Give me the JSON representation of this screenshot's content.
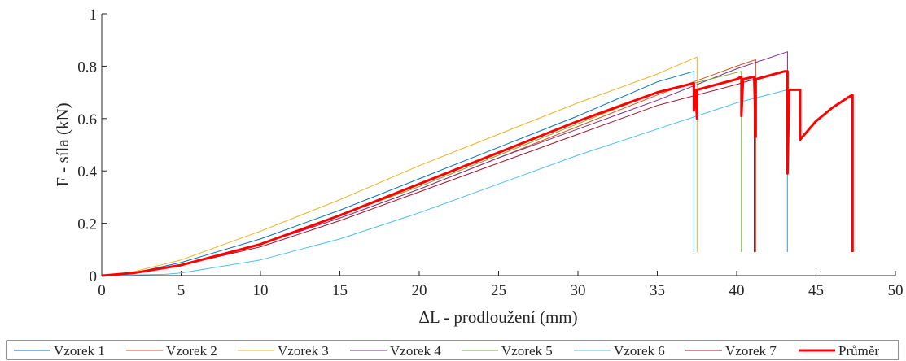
{
  "chart_data": {
    "type": "line",
    "title": "",
    "xlabel": "ΔL - prodloužení (mm)",
    "ylabel": "F - síla (kN)",
    "xlim": [
      0,
      50
    ],
    "ylim": [
      0,
      1
    ],
    "xticks": [
      0,
      5,
      10,
      15,
      20,
      25,
      30,
      35,
      40,
      45,
      50
    ],
    "yticks": [
      0,
      0.2,
      0.4,
      0.6,
      0.8,
      1
    ],
    "xtick_labels": [
      "0",
      "5",
      "10",
      "15",
      "20",
      "25",
      "30",
      "35",
      "40",
      "45",
      "50"
    ],
    "ytick_labels": [
      "0",
      "0.2",
      "0.4",
      "0.6",
      "0.8",
      "1"
    ],
    "grid": false,
    "legend_position": "bottom",
    "series": [
      {
        "name": "Vzorek 1",
        "color": "#0072BD",
        "width": 1,
        "points": [
          [
            0,
            0
          ],
          [
            2,
            0.01
          ],
          [
            5,
            0.05
          ],
          [
            10,
            0.14
          ],
          [
            15,
            0.25
          ],
          [
            20,
            0.37
          ],
          [
            25,
            0.49
          ],
          [
            30,
            0.61
          ],
          [
            35,
            0.74
          ],
          [
            37.3,
            0.78
          ],
          [
            37.3,
            0.09
          ]
        ]
      },
      {
        "name": "Vzorek 2",
        "color": "#D95319",
        "width": 1,
        "points": [
          [
            0,
            0
          ],
          [
            2,
            0.01
          ],
          [
            5,
            0.04
          ],
          [
            10,
            0.12
          ],
          [
            15,
            0.22
          ],
          [
            20,
            0.33
          ],
          [
            25,
            0.45
          ],
          [
            30,
            0.57
          ],
          [
            35,
            0.69
          ],
          [
            40,
            0.8
          ],
          [
            41.2,
            0.825
          ],
          [
            41.2,
            0.09
          ]
        ]
      },
      {
        "name": "Vzorek 3",
        "color": "#EDB120",
        "width": 1,
        "points": [
          [
            0,
            0
          ],
          [
            2,
            0.015
          ],
          [
            5,
            0.06
          ],
          [
            10,
            0.17
          ],
          [
            15,
            0.29
          ],
          [
            20,
            0.42
          ],
          [
            25,
            0.54
          ],
          [
            30,
            0.66
          ],
          [
            35,
            0.77
          ],
          [
            37.5,
            0.835
          ],
          [
            37.5,
            0.09
          ]
        ]
      },
      {
        "name": "Vzorek 4",
        "color": "#7E2F8E",
        "width": 1,
        "points": [
          [
            0,
            0
          ],
          [
            2,
            0.01
          ],
          [
            5,
            0.04
          ],
          [
            10,
            0.12
          ],
          [
            15,
            0.22
          ],
          [
            20,
            0.33
          ],
          [
            25,
            0.45
          ],
          [
            30,
            0.56
          ],
          [
            35,
            0.67
          ],
          [
            40,
            0.79
          ],
          [
            43.2,
            0.855
          ],
          [
            43.2,
            0.09
          ]
        ]
      },
      {
        "name": "Vzorek 5",
        "color": "#77AC30",
        "width": 1,
        "points": [
          [
            0,
            0
          ],
          [
            2,
            0.01
          ],
          [
            5,
            0.04
          ],
          [
            10,
            0.12
          ],
          [
            15,
            0.23
          ],
          [
            20,
            0.34
          ],
          [
            25,
            0.46
          ],
          [
            30,
            0.58
          ],
          [
            35,
            0.7
          ],
          [
            40.3,
            0.78
          ],
          [
            40.3,
            0.09
          ]
        ]
      },
      {
        "name": "Vzorek 6",
        "color": "#4DBEEE",
        "width": 1,
        "points": [
          [
            0,
            0
          ],
          [
            4,
            0.005
          ],
          [
            5,
            0.01
          ],
          [
            10,
            0.06
          ],
          [
            15,
            0.14
          ],
          [
            20,
            0.24
          ],
          [
            25,
            0.35
          ],
          [
            30,
            0.46
          ],
          [
            35,
            0.56
          ],
          [
            40,
            0.66
          ],
          [
            43.2,
            0.71
          ],
          [
            43.2,
            0.09
          ]
        ]
      },
      {
        "name": "Vzorek 7",
        "color": "#A2142F",
        "width": 1,
        "points": [
          [
            0,
            0
          ],
          [
            2,
            0.01
          ],
          [
            5,
            0.04
          ],
          [
            10,
            0.11
          ],
          [
            15,
            0.21
          ],
          [
            20,
            0.32
          ],
          [
            25,
            0.43
          ],
          [
            30,
            0.54
          ],
          [
            35,
            0.65
          ],
          [
            40,
            0.73
          ],
          [
            41.1,
            0.75
          ],
          [
            41.1,
            0.09
          ]
        ]
      },
      {
        "name": "Průměr",
        "color": "#FF0000",
        "width": 3,
        "points": [
          [
            0,
            0
          ],
          [
            2,
            0.01
          ],
          [
            5,
            0.04
          ],
          [
            10,
            0.12
          ],
          [
            15,
            0.23
          ],
          [
            20,
            0.35
          ],
          [
            25,
            0.47
          ],
          [
            30,
            0.59
          ],
          [
            35,
            0.7
          ],
          [
            37.3,
            0.735
          ],
          [
            37.3,
            0.63
          ],
          [
            37.4,
            0.71
          ],
          [
            37.5,
            0.6
          ],
          [
            37.5,
            0.71
          ],
          [
            40,
            0.75
          ],
          [
            40.3,
            0.76
          ],
          [
            40.3,
            0.61
          ],
          [
            40.4,
            0.75
          ],
          [
            41.1,
            0.76
          ],
          [
            41.2,
            0.53
          ],
          [
            41.2,
            0.75
          ],
          [
            43,
            0.78
          ],
          [
            43.2,
            0.78
          ],
          [
            43.2,
            0.39
          ],
          [
            43.3,
            0.71
          ],
          [
            44,
            0.71
          ],
          [
            44,
            0.52
          ],
          [
            45,
            0.59
          ],
          [
            46,
            0.64
          ],
          [
            47,
            0.68
          ],
          [
            47.3,
            0.69
          ],
          [
            47.3,
            0.09
          ]
        ]
      }
    ]
  }
}
